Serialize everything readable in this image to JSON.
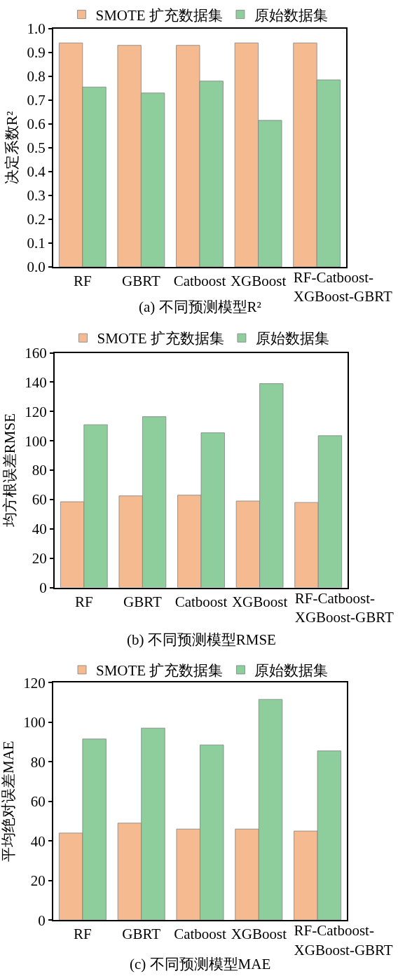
{
  "chart_data": [
    {
      "type": "bar",
      "categories": [
        "RF",
        "GBRT",
        "Catboost",
        "XGBoost",
        "RF-Catboost-XGBoost-GBRT"
      ],
      "series": [
        {
          "name": "SMOTE 扩充数据集",
          "color": "#f5ba90",
          "values": [
            0.94,
            0.93,
            0.93,
            0.94,
            0.94
          ]
        },
        {
          "name": "原始数据集",
          "color": "#8ecd9c",
          "values": [
            0.755,
            0.73,
            0.78,
            0.615,
            0.785
          ]
        }
      ],
      "ylabel": "决定系数R²",
      "ylim": [
        0,
        1
      ],
      "yticks": [
        {
          "value": 0,
          "label": "0.0"
        },
        0.1,
        0.2,
        0.3,
        0.4,
        0.5,
        0.6,
        0.7,
        0.8,
        0.9,
        {
          "value": 1,
          "label": "1.0"
        }
      ],
      "legend": "top",
      "annotations": [
        "(a) 不同预测模型R²"
      ]
    },
    {
      "type": "bar",
      "categories": [
        "RF",
        "GBRT",
        "Catboost",
        "XGBoost",
        "RF-Catboost-XGBoost-GBRT"
      ],
      "series": [
        {
          "name": "SMOTE 扩充数据集",
          "color": "#f5ba90",
          "values": [
            58.5,
            62.5,
            63,
            59,
            58
          ]
        },
        {
          "name": "原始数据集",
          "color": "#8ecd9c",
          "values": [
            111,
            116.5,
            105.5,
            139,
            103.5
          ]
        }
      ],
      "ylabel": "均方根误差RMSE",
      "ylim": [
        0,
        160
      ],
      "yticks": [
        0,
        20,
        40,
        60,
        80,
        100,
        120,
        140,
        160
      ],
      "legend": "top",
      "annotations": [
        "(b) 不同预测模型RMSE"
      ]
    },
    {
      "type": "bar",
      "categories": [
        "RF",
        "GBRT",
        "Catboost",
        "XGBoost",
        "RF-Catboost-XGBoost-GBRT"
      ],
      "series": [
        {
          "name": "SMOTE 扩充数据集",
          "color": "#f5ba90",
          "values": [
            44,
            49,
            46,
            46,
            45
          ]
        },
        {
          "name": "原始数据集",
          "color": "#8ecd9c",
          "values": [
            91.5,
            97,
            88.5,
            111.5,
            85.5
          ]
        }
      ],
      "ylabel": "平均绝对误差MAE",
      "ylim": [
        0,
        120
      ],
      "yticks": [
        0,
        20,
        40,
        60,
        80,
        100,
        120
      ],
      "legend": "top",
      "annotations": [
        "(c) 不同预测模型MAE"
      ]
    }
  ]
}
